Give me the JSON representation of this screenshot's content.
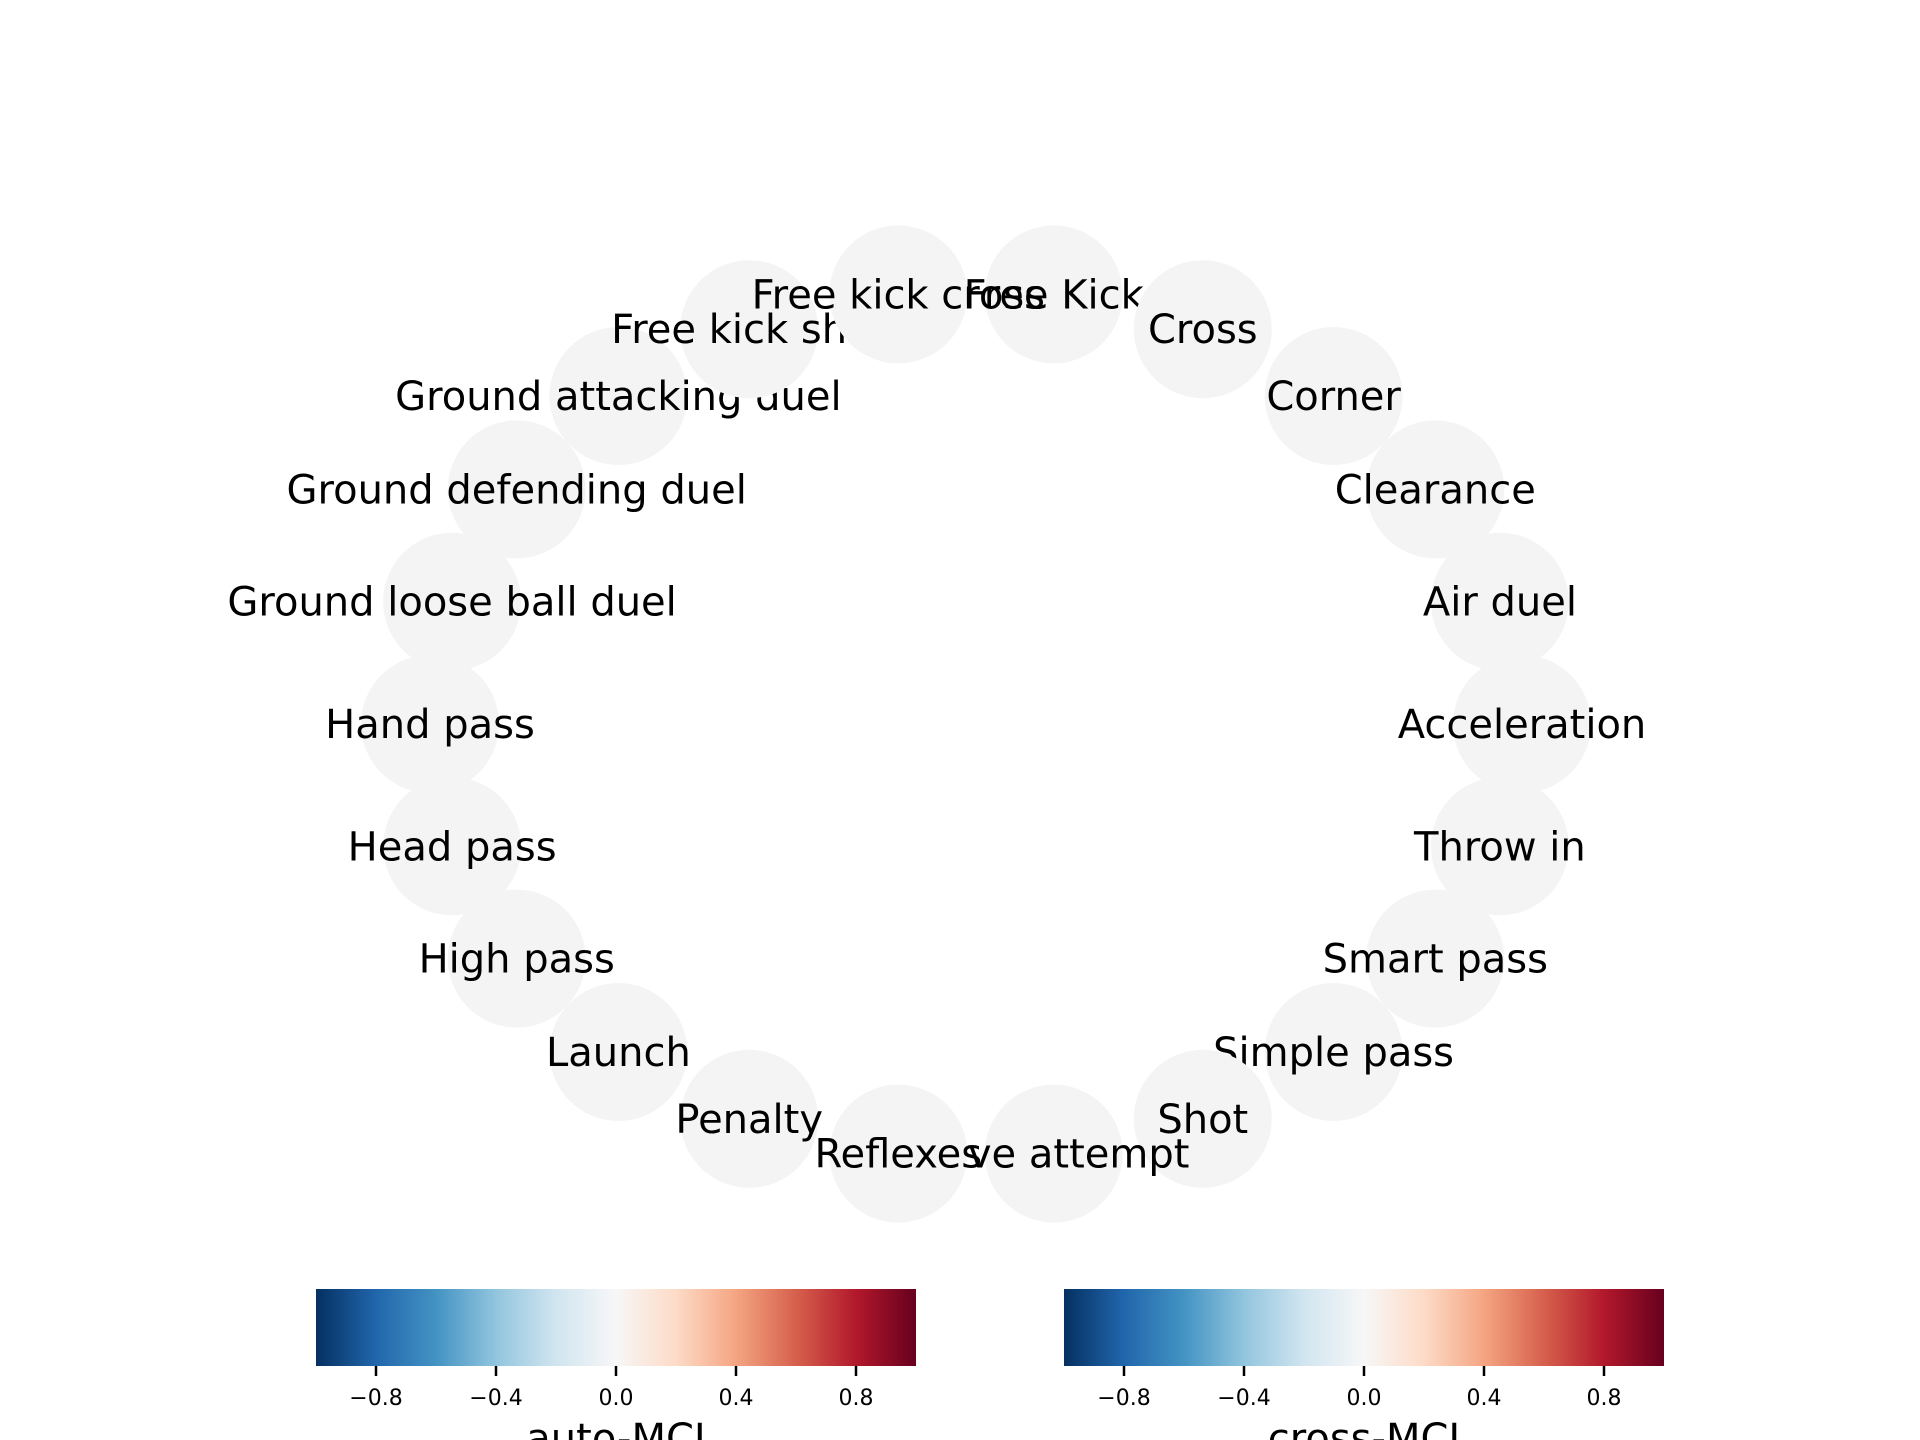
{
  "nodes": [
    "Free Kick",
    "Cross",
    "Corner",
    "Clearance",
    "Air duel",
    "Acceleration",
    "Throw in",
    "Smart pass",
    "Simple pass",
    "Shot",
    "Save attempt",
    "Reflexes",
    "Penalty",
    "Launch",
    "High pass",
    "Head pass",
    "Hand pass",
    "Ground loose ball duel",
    "Ground defending duel",
    "Ground attacking duel",
    "Free kick shot",
    "Free kick cross"
  ],
  "node_color": "#f4f4f4",
  "colorbars": [
    {
      "title": "auto-MCI",
      "colormap": "RdBu_r",
      "range": [
        -1,
        1
      ],
      "ticks": [
        -0.8,
        -0.4,
        0.0,
        0.4,
        0.8
      ],
      "tick_labels": [
        "−0.8",
        "−0.4",
        "0.0",
        "0.4",
        "0.8"
      ]
    },
    {
      "title": "cross-MCI",
      "colormap": "RdBu_r",
      "range": [
        -1,
        1
      ],
      "ticks": [
        -0.8,
        -0.4,
        0.0,
        0.4,
        0.8
      ],
      "tick_labels": [
        "−0.8",
        "−0.4",
        "0.0",
        "0.4",
        "0.8"
      ]
    }
  ],
  "colormap_stops": [
    "#053061",
    "#2166ac",
    "#4393c3",
    "#92c5de",
    "#d1e5f0",
    "#f7f7f7",
    "#fddbc7",
    "#f4a582",
    "#d6604d",
    "#b2182b",
    "#67001f"
  ]
}
